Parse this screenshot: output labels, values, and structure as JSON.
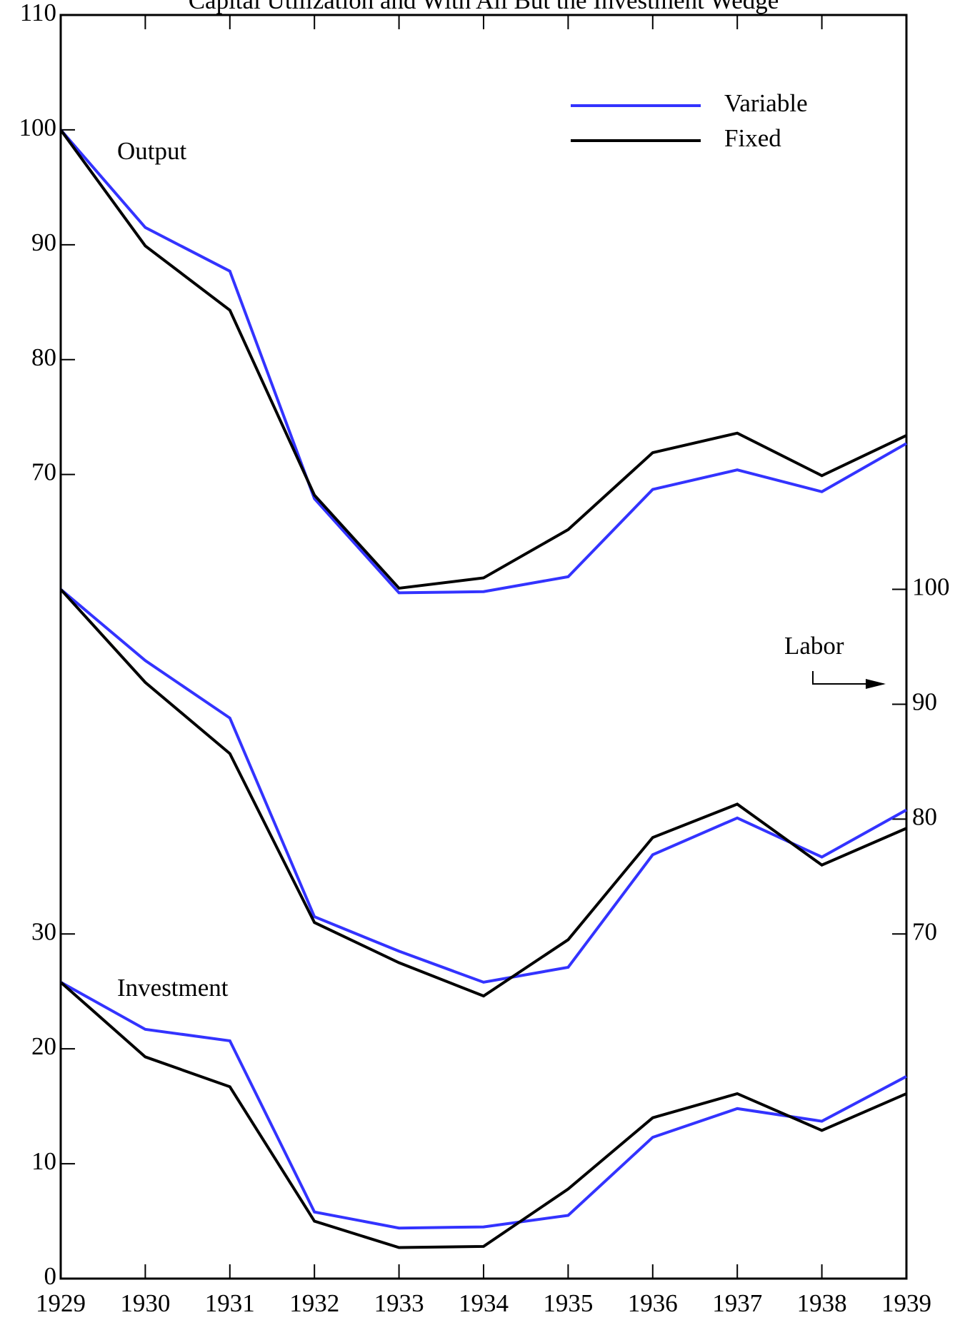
{
  "chart_data": {
    "type": "line",
    "title": "Capital Utilization and With All But the Investment Wedge",
    "x": [
      1929,
      1930,
      1931,
      1932,
      1933,
      1934,
      1935,
      1936,
      1937,
      1938,
      1939
    ],
    "xlim": [
      1929,
      1939
    ],
    "xticks": [
      1929,
      1930,
      1931,
      1932,
      1933,
      1934,
      1935,
      1936,
      1937,
      1938,
      1939
    ],
    "ylim": [
      0,
      110
    ],
    "yticks": [
      0,
      10,
      20,
      30,
      70,
      80,
      90,
      100,
      110
    ],
    "y2lim": [
      40,
      150
    ],
    "y2ticks": [
      70,
      80,
      90,
      100
    ],
    "legend": "upper right",
    "panels": [
      {
        "label": "Output",
        "series": [
          {
            "name": "Variable",
            "color": "#3333ff",
            "values": [
              100,
              91.5,
              87.7,
              67.9,
              59.7,
              59.8,
              61.1,
              68.7,
              70.4,
              68.5,
              72.7
            ]
          },
          {
            "name": "Fixed",
            "color": "#000000",
            "values": [
              100,
              89.9,
              84.3,
              68.2,
              60.1,
              61.0,
              65.2,
              71.9,
              73.6,
              69.9,
              73.4
            ]
          }
        ]
      },
      {
        "label": "Labor",
        "axis": "y2",
        "series": [
          {
            "name": "Variable",
            "color": "#3333ff",
            "axis": "y2",
            "values": [
              100,
              93.8,
              88.8,
              71.5,
              68.5,
              65.8,
              67.1,
              76.9,
              80.1,
              76.7,
              80.8
            ]
          },
          {
            "name": "Fixed",
            "color": "#000000",
            "axis": "y2",
            "values": [
              100,
              91.9,
              85.7,
              71.0,
              67.5,
              64.6,
              69.5,
              78.4,
              81.3,
              76.0,
              79.2
            ]
          }
        ]
      },
      {
        "label": "Investment",
        "series": [
          {
            "name": "Variable",
            "color": "#3333ff",
            "values": [
              25.8,
              21.7,
              20.7,
              5.8,
              4.4,
              4.5,
              5.5,
              12.3,
              14.8,
              13.7,
              17.6
            ]
          },
          {
            "name": "Fixed",
            "color": "#000000",
            "values": [
              25.8,
              19.3,
              16.7,
              5.0,
              2.7,
              2.8,
              7.8,
              14.0,
              16.1,
              12.9,
              16.1
            ]
          }
        ]
      }
    ]
  }
}
